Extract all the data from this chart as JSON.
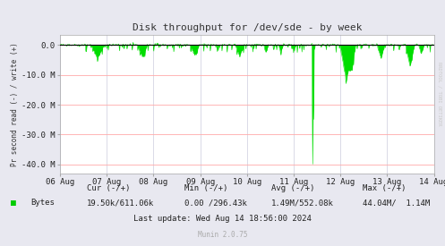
{
  "title": "Disk throughput for /dev/sde - by week",
  "ylabel": "Pr second read (-) / write (+)",
  "xlabel_ticks": [
    "06 Aug",
    "07 Aug",
    "08 Aug",
    "09 Aug",
    "10 Aug",
    "11 Aug",
    "12 Aug",
    "13 Aug",
    "14 Aug"
  ],
  "ytick_labels": [
    "0.0",
    "-10.0 M",
    "-20.0 M",
    "-30.0 M",
    "-40.0 M"
  ],
  "ytick_vals": [
    0.0,
    -10.0,
    -20.0,
    -30.0,
    -40.0
  ],
  "ymin": -43.0,
  "ymax": 3.5,
  "bg_color": "#e8e8f0",
  "plot_bg_color": "#ffffff",
  "grid_h_color": "#ffaaaa",
  "grid_v_color": "#ccccdd",
  "line_color": "#00dd00",
  "fill_color": "#00dd00",
  "title_color": "#333333",
  "axis_color": "#aaaaaa",
  "legend_label": "Bytes",
  "legend_color": "#00cc00",
  "cur_label": "Cur (-/+)",
  "cur_val": "19.50k/611.06k",
  "min_label": "Min (-/+)",
  "min_val": "0.00 /296.43k",
  "avg_label": "Avg (-/+)",
  "avg_val": "1.49M/552.08k",
  "max_label": "Max (-/+)",
  "max_val": "44.04M/  1.14M",
  "last_update": "Last update: Wed Aug 14 18:56:00 2024",
  "munin_version": "Munin 2.0.75",
  "watermark": "RRDTOOL / TOBI OETIKER",
  "num_points": 800
}
